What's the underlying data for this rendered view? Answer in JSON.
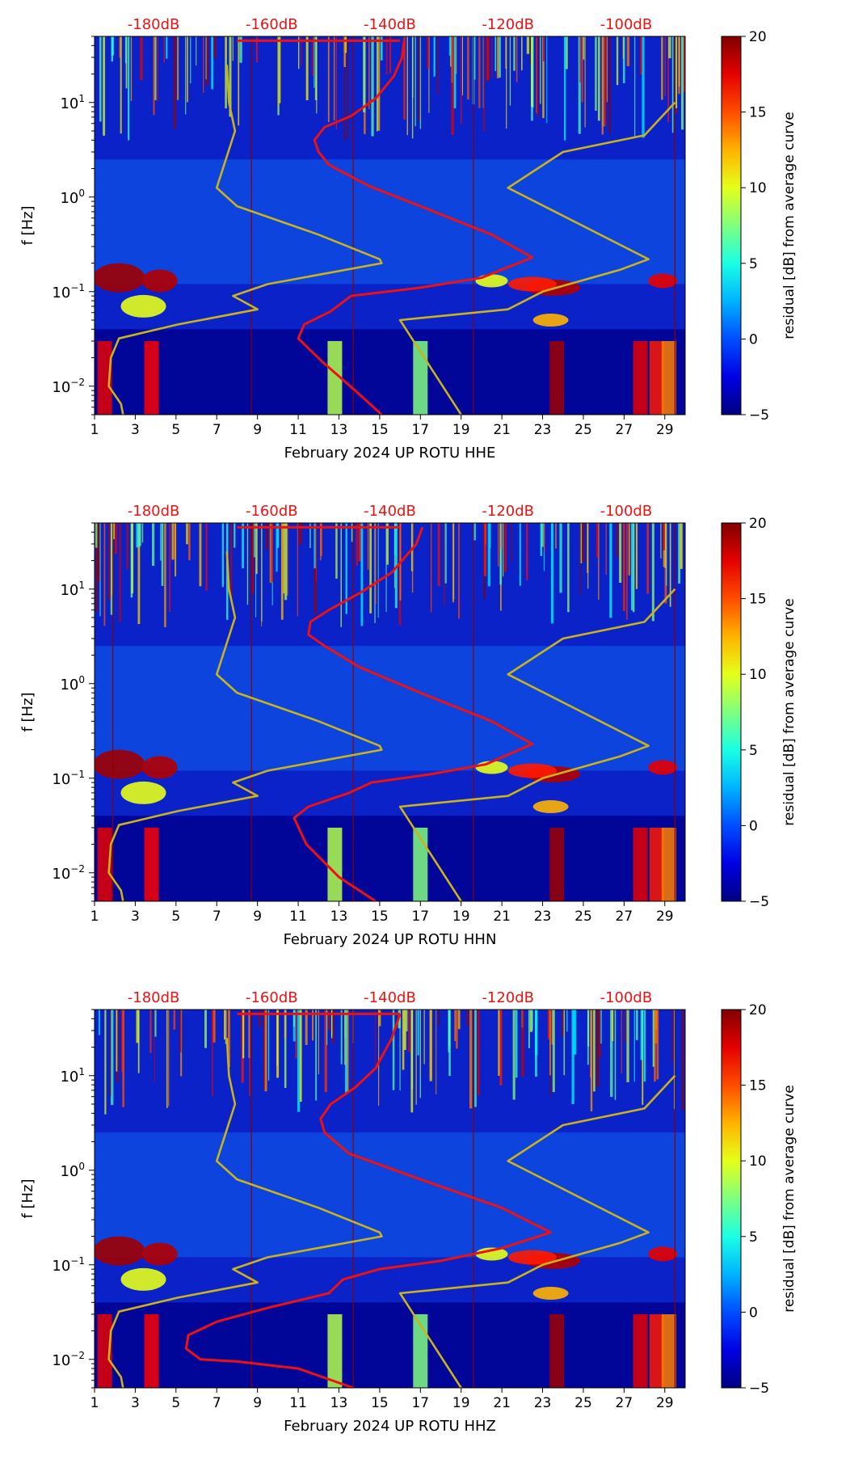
{
  "chart_data": [
    {
      "type": "heatmap",
      "title": "",
      "xlabel": "February 2024 UP ROTU  HHE",
      "ylabel": "f [Hz]",
      "xlim": [
        1,
        30
      ],
      "ylim": [
        0.005,
        50
      ],
      "yscale": "log",
      "x_ticks": [
        "1",
        "3",
        "5",
        "7",
        "9",
        "11",
        "13",
        "15",
        "17",
        "19",
        "21",
        "23",
        "25",
        "27",
        "29"
      ],
      "y_ticks": [
        {
          "value": 10,
          "label": "10",
          "exp": "1"
        },
        {
          "value": 1,
          "label": "10",
          "exp": "0"
        },
        {
          "value": 0.1,
          "label": "10",
          "exp": "−1"
        },
        {
          "value": 0.01,
          "label": "10",
          "exp": "−2"
        }
      ],
      "top_axis_labels": [
        "-180dB",
        "-160dB",
        "-140dB",
        "-120dB",
        "-100dB"
      ],
      "colorbar": {
        "label": "residual [dB] from average curve",
        "min": -5,
        "max": 20,
        "ticks": [
          "20",
          "15",
          "10",
          "5",
          "0",
          "−5"
        ]
      },
      "vertical_lines": [
        8.7,
        13.7,
        19.6,
        29.5
      ],
      "series": [
        {
          "name": "average PSD curve (red)",
          "color": "#ee1111",
          "points": [
            [
              15.1,
              0.005
            ],
            [
              13.8,
              0.009
            ],
            [
              12.2,
              0.018
            ],
            [
              11.0,
              0.032
            ],
            [
              11.3,
              0.045
            ],
            [
              12.6,
              0.062
            ],
            [
              13.6,
              0.09
            ],
            [
              17.0,
              0.11
            ],
            [
              20.0,
              0.14
            ],
            [
              22.5,
              0.23
            ],
            [
              20.5,
              0.4
            ],
            [
              17.0,
              0.8
            ],
            [
              14.5,
              1.3
            ],
            [
              12.5,
              2.2
            ],
            [
              12.0,
              3.0
            ],
            [
              11.8,
              4.0
            ],
            [
              12.3,
              5.5
            ],
            [
              13.6,
              7.2
            ],
            [
              14.8,
              11.0
            ],
            [
              15.7,
              19.0
            ],
            [
              16.1,
              30.0
            ],
            [
              16.2,
              45.0
            ]
          ]
        },
        {
          "name": "noise model low (yellow)",
          "color": "#c8b21e",
          "points": [
            [
              2.4,
              0.005
            ],
            [
              2.3,
              0.0065
            ],
            [
              1.7,
              0.01
            ],
            [
              1.8,
              0.02
            ],
            [
              2.2,
              0.032
            ],
            [
              5.1,
              0.045
            ],
            [
              9.0,
              0.065
            ],
            [
              7.8,
              0.09
            ],
            [
              9.5,
              0.12
            ],
            [
              15.1,
              0.2
            ],
            [
              15.0,
              0.22
            ],
            [
              12.0,
              0.4
            ],
            [
              8.0,
              0.8
            ],
            [
              7.0,
              1.25
            ],
            [
              7.9,
              5.0
            ],
            [
              7.6,
              10.0
            ],
            [
              7.5,
              25.0
            ]
          ]
        },
        {
          "name": "noise model high (yellow)",
          "color": "#c8b21e",
          "points": [
            [
              19.0,
              0.005
            ],
            [
              16.0,
              0.05
            ],
            [
              21.3,
              0.065
            ],
            [
              23.0,
              0.1
            ],
            [
              26.8,
              0.17
            ],
            [
              28.2,
              0.22
            ],
            [
              21.3,
              1.25
            ],
            [
              24.0,
              3.0
            ],
            [
              28.0,
              4.5
            ],
            [
              29.5,
              10.0
            ]
          ]
        }
      ]
    },
    {
      "type": "heatmap",
      "title": "",
      "xlabel": "February 2024 UP ROTU  HHN",
      "ylabel": "f [Hz]",
      "xlim": [
        1,
        30
      ],
      "ylim": [
        0.005,
        50
      ],
      "yscale": "log",
      "x_ticks": [
        "1",
        "3",
        "5",
        "7",
        "9",
        "11",
        "13",
        "15",
        "17",
        "19",
        "21",
        "23",
        "25",
        "27",
        "29"
      ],
      "y_ticks": [
        {
          "value": 10,
          "label": "10",
          "exp": "1"
        },
        {
          "value": 1,
          "label": "10",
          "exp": "0"
        },
        {
          "value": 0.1,
          "label": "10",
          "exp": "−1"
        },
        {
          "value": 0.01,
          "label": "10",
          "exp": "−2"
        }
      ],
      "top_axis_labels": [
        "-180dB",
        "-160dB",
        "-140dB",
        "-120dB",
        "-100dB"
      ],
      "colorbar": {
        "label": "residual [dB] from average curve",
        "min": -5,
        "max": 20,
        "ticks": [
          "20",
          "15",
          "10",
          "5",
          "0",
          "−5"
        ]
      },
      "vertical_lines": [
        1.9,
        8.7,
        13.7,
        19.6,
        29.5
      ],
      "series": [
        {
          "name": "average PSD curve (red)",
          "color": "#ee1111",
          "points": [
            [
              14.8,
              0.005
            ],
            [
              13.0,
              0.009
            ],
            [
              11.4,
              0.02
            ],
            [
              10.8,
              0.038
            ],
            [
              11.5,
              0.05
            ],
            [
              13.5,
              0.07
            ],
            [
              14.6,
              0.09
            ],
            [
              17.5,
              0.11
            ],
            [
              20.2,
              0.14
            ],
            [
              22.5,
              0.23
            ],
            [
              20.5,
              0.4
            ],
            [
              17.0,
              0.8
            ],
            [
              14.0,
              1.5
            ],
            [
              12.3,
              2.5
            ],
            [
              11.5,
              3.3
            ],
            [
              11.6,
              4.5
            ],
            [
              12.5,
              6.0
            ],
            [
              14.0,
              9.0
            ],
            [
              15.6,
              15.0
            ],
            [
              16.8,
              30.0
            ],
            [
              17.1,
              45.0
            ]
          ]
        },
        {
          "name": "noise model low (yellow)",
          "color": "#c8b21e",
          "points": [
            [
              2.4,
              0.005
            ],
            [
              2.3,
              0.0065
            ],
            [
              1.7,
              0.01
            ],
            [
              1.8,
              0.02
            ],
            [
              2.2,
              0.032
            ],
            [
              5.1,
              0.045
            ],
            [
              9.0,
              0.065
            ],
            [
              7.8,
              0.09
            ],
            [
              9.5,
              0.12
            ],
            [
              15.1,
              0.2
            ],
            [
              15.0,
              0.22
            ],
            [
              12.0,
              0.4
            ],
            [
              8.0,
              0.8
            ],
            [
              7.0,
              1.25
            ],
            [
              7.9,
              5.0
            ],
            [
              7.6,
              10.0
            ],
            [
              7.5,
              25.0
            ]
          ]
        },
        {
          "name": "noise model high (yellow)",
          "color": "#c8b21e",
          "points": [
            [
              19.0,
              0.005
            ],
            [
              16.0,
              0.05
            ],
            [
              21.3,
              0.065
            ],
            [
              23.0,
              0.1
            ],
            [
              26.8,
              0.17
            ],
            [
              28.2,
              0.22
            ],
            [
              21.3,
              1.25
            ],
            [
              24.0,
              3.0
            ],
            [
              28.0,
              4.5
            ],
            [
              29.5,
              10.0
            ]
          ]
        }
      ]
    },
    {
      "type": "heatmap",
      "title": "",
      "xlabel": "February 2024 UP ROTU  HHZ",
      "ylabel": "f [Hz]",
      "xlim": [
        1,
        30
      ],
      "ylim": [
        0.005,
        50
      ],
      "yscale": "log",
      "x_ticks": [
        "1",
        "3",
        "5",
        "7",
        "9",
        "11",
        "13",
        "15",
        "17",
        "19",
        "21",
        "23",
        "25",
        "27",
        "29"
      ],
      "y_ticks": [
        {
          "value": 10,
          "label": "10",
          "exp": "1"
        },
        {
          "value": 1,
          "label": "10",
          "exp": "0"
        },
        {
          "value": 0.1,
          "label": "10",
          "exp": "−1"
        },
        {
          "value": 0.01,
          "label": "10",
          "exp": "−2"
        }
      ],
      "top_axis_labels": [
        "-180dB",
        "-160dB",
        "-140dB",
        "-120dB",
        "-100dB"
      ],
      "colorbar": {
        "label": "residual [dB] from average curve",
        "min": -5,
        "max": 20,
        "ticks": [
          "20",
          "15",
          "10",
          "5",
          "0",
          "−5"
        ]
      },
      "vertical_lines": [
        8.7,
        13.7,
        19.6,
        29.5
      ],
      "series": [
        {
          "name": "average PSD curve (red)",
          "color": "#ee1111",
          "points": [
            [
              13.7,
              0.005
            ],
            [
              11.0,
              0.008
            ],
            [
              8.0,
              0.0095
            ],
            [
              6.2,
              0.01
            ],
            [
              5.5,
              0.013
            ],
            [
              5.6,
              0.018
            ],
            [
              7.0,
              0.025
            ],
            [
              9.5,
              0.035
            ],
            [
              12.5,
              0.05
            ],
            [
              13.2,
              0.07
            ],
            [
              15.0,
              0.09
            ],
            [
              18.0,
              0.11
            ],
            [
              21.0,
              0.15
            ],
            [
              23.4,
              0.22
            ],
            [
              21.0,
              0.4
            ],
            [
              17.0,
              0.8
            ],
            [
              13.5,
              1.5
            ],
            [
              12.3,
              2.5
            ],
            [
              12.1,
              3.5
            ],
            [
              12.6,
              5.0
            ],
            [
              13.8,
              7.5
            ],
            [
              14.8,
              12.0
            ],
            [
              15.6,
              25.0
            ],
            [
              16.0,
              45.0
            ]
          ]
        },
        {
          "name": "noise model low (yellow)",
          "color": "#c8b21e",
          "points": [
            [
              2.4,
              0.005
            ],
            [
              2.3,
              0.0065
            ],
            [
              1.7,
              0.01
            ],
            [
              1.8,
              0.02
            ],
            [
              2.2,
              0.032
            ],
            [
              5.1,
              0.045
            ],
            [
              9.0,
              0.065
            ],
            [
              7.8,
              0.09
            ],
            [
              9.5,
              0.12
            ],
            [
              15.1,
              0.2
            ],
            [
              15.0,
              0.22
            ],
            [
              12.0,
              0.4
            ],
            [
              8.0,
              0.8
            ],
            [
              7.0,
              1.25
            ],
            [
              7.9,
              5.0
            ],
            [
              7.6,
              10.0
            ],
            [
              7.5,
              25.0
            ]
          ]
        },
        {
          "name": "noise model high (yellow)",
          "color": "#c8b21e",
          "points": [
            [
              19.0,
              0.005
            ],
            [
              16.0,
              0.05
            ],
            [
              21.3,
              0.065
            ],
            [
              23.0,
              0.1
            ],
            [
              26.8,
              0.17
            ],
            [
              28.2,
              0.22
            ],
            [
              21.3,
              1.25
            ],
            [
              24.0,
              3.0
            ],
            [
              28.0,
              4.5
            ],
            [
              29.5,
              10.0
            ]
          ]
        }
      ]
    }
  ]
}
